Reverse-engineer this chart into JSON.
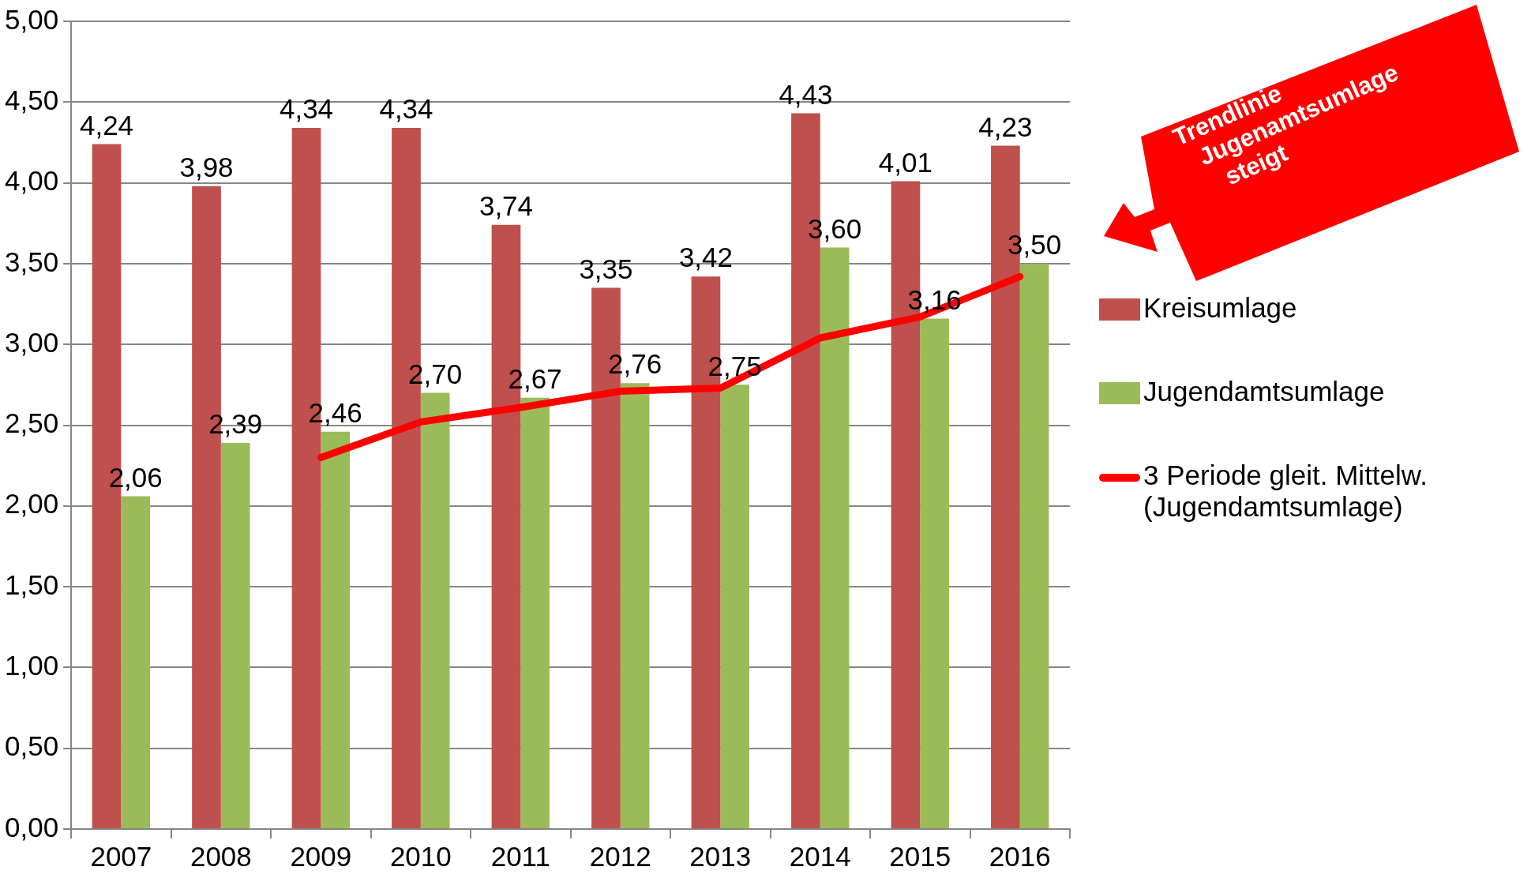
{
  "chart_data": {
    "type": "bar",
    "categories": [
      "2007",
      "2008",
      "2009",
      "2010",
      "2011",
      "2012",
      "2013",
      "2014",
      "2015",
      "2016"
    ],
    "series": [
      {
        "name": "Kreisumlage",
        "color": "#c0504d",
        "values": [
          4.24,
          3.98,
          4.34,
          4.34,
          3.74,
          3.35,
          3.42,
          4.43,
          4.01,
          4.23
        ],
        "value_labels": [
          "4,24",
          "3,98",
          "4,34",
          "4,34",
          "3,74",
          "3,35",
          "3,42",
          "4,43",
          "4,01",
          "4,23"
        ]
      },
      {
        "name": "Jugendamtsumlage",
        "color": "#9bbb59",
        "values": [
          2.06,
          2.39,
          2.46,
          2.7,
          2.67,
          2.76,
          2.75,
          3.6,
          3.16,
          3.5
        ],
        "value_labels": [
          "2,06",
          "2,39",
          "2,46",
          "2,70",
          "2,67",
          "2,76",
          "2,75",
          "3,60",
          "3,16",
          "3,50"
        ]
      },
      {
        "name": "3 Periode gleit. Mittelw. (Jugendamtsumlage)",
        "type": "line",
        "color": "#ff0000",
        "values": [
          null,
          null,
          2.3,
          2.52,
          2.61,
          2.71,
          2.73,
          3.04,
          3.17,
          3.42
        ]
      }
    ],
    "ylim": [
      0,
      5
    ],
    "yticks": [
      {
        "value": 0,
        "label": "0,00"
      },
      {
        "value": 0.5,
        "label": "0,50"
      },
      {
        "value": 1,
        "label": "1,00"
      },
      {
        "value": 1.5,
        "label": "1,50"
      },
      {
        "value": 2,
        "label": "2,00"
      },
      {
        "value": 2.5,
        "label": "2,50"
      },
      {
        "value": 3,
        "label": "3,00"
      },
      {
        "value": 3.5,
        "label": "3,50"
      },
      {
        "value": 4,
        "label": "4,00"
      },
      {
        "value": 4.5,
        "label": "4,50"
      },
      {
        "value": 5,
        "label": "5,00"
      }
    ],
    "grid": "y",
    "legend": "right",
    "marker": "none",
    "line_style": "solid",
    "annotations": [
      "Trendlinie Jugenamtsumlage steigt"
    ]
  }
}
